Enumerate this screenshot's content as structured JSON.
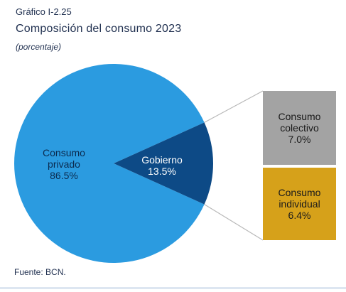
{
  "chart_label": "Gráfico I-2.25",
  "title": "Composición del consumo 2023",
  "subtitle": "(porcentaje)",
  "source": "Fuente: BCN.",
  "colors": {
    "privado": "#2b9be0",
    "gobierno": "#0d4a86",
    "colectivo": "#a3a3a3",
    "individual": "#d6a11a",
    "connector": "#b8b8b8"
  },
  "chart_data": {
    "type": "pie",
    "slices": [
      {
        "label_lines": [
          "Consumo",
          "privado"
        ],
        "value": 86.5,
        "value_text": "86.5%"
      },
      {
        "label_lines": [
          "Gobierno"
        ],
        "value": 13.5,
        "value_text": "13.5%"
      }
    ],
    "breakdown": {
      "parent": "Gobierno",
      "items": [
        {
          "label_lines": [
            "Consumo",
            "colectivo"
          ],
          "value": 7.0,
          "value_text": "7.0%"
        },
        {
          "label_lines": [
            "Consumo",
            "individual"
          ],
          "value": 6.4,
          "value_text": "6.4%"
        }
      ]
    }
  }
}
